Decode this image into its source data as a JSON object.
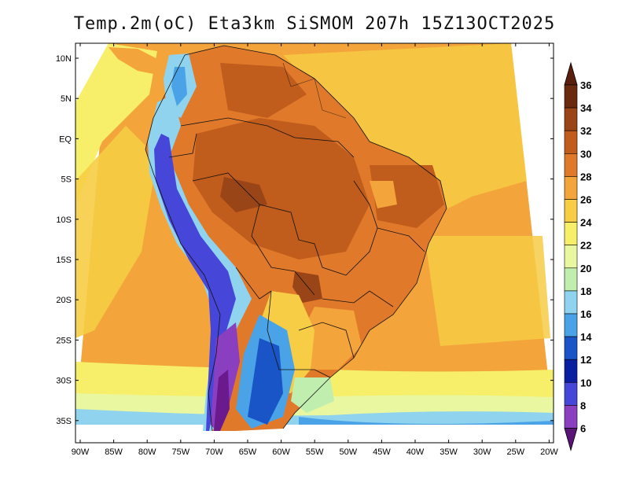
{
  "title": "Temp.2m(oC) Eta3km SiSMOM 207h 15Z13OCT2025",
  "lat_labels": [
    "10N",
    "5N",
    "EQ",
    "5S",
    "10S",
    "15S",
    "20S",
    "25S",
    "30S",
    "35S"
  ],
  "lon_labels": [
    "90W",
    "85W",
    "80W",
    "75W",
    "70W",
    "65W",
    "60W",
    "55W",
    "50W",
    "45W",
    "40W",
    "35W",
    "30W",
    "25W",
    "20W"
  ],
  "colorbar": {
    "labels": [
      "36",
      "34",
      "32",
      "30",
      "28",
      "26",
      "24",
      "22",
      "20",
      "18",
      "16",
      "14",
      "12",
      "10",
      "8",
      "6"
    ],
    "colors": [
      "#6a2a10",
      "#9a4518",
      "#c05c1c",
      "#e07a2a",
      "#f3a43a",
      "#f6cd45",
      "#f7ef6a",
      "#e8f7a0",
      "#bfeeae",
      "#8fd3ee",
      "#4aa3e6",
      "#1a55c8",
      "#0a1fa0",
      "#4646d8",
      "#8a3ec0",
      "#6a1a8c"
    ],
    "over_color": "#5a1e0e",
    "under_color": "#5a1478"
  }
}
